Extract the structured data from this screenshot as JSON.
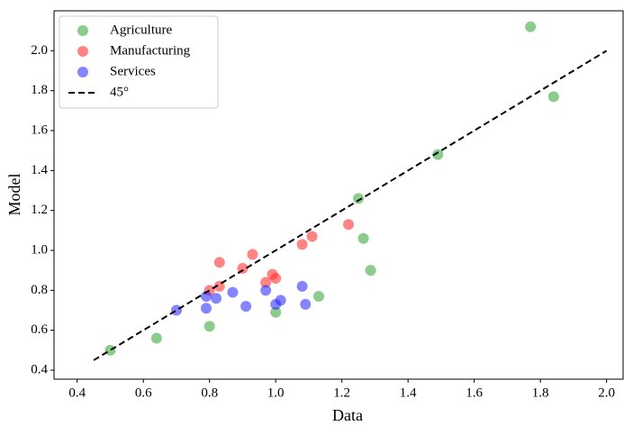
{
  "chart_data": {
    "type": "scatter",
    "xlabel": "Data",
    "ylabel": "Model",
    "xlim": [
      0.33,
      2.05
    ],
    "ylim": [
      0.355,
      2.2
    ],
    "xticks": [
      0.4,
      0.6,
      0.8,
      {
        "value": 1,
        "label": "1.0"
      },
      1.2,
      1.4,
      1.6,
      1.8,
      {
        "value": 2,
        "label": "2.0"
      }
    ],
    "yticks": [
      0.4,
      0.6,
      0.8,
      {
        "value": 1,
        "label": "1.0"
      },
      1.2,
      1.4,
      1.6,
      1.8,
      {
        "value": 2,
        "label": "2.0"
      }
    ],
    "legend": "upper left",
    "series": [
      {
        "name": "Agriculture",
        "color": "#2ca02c",
        "kind": "scatter",
        "x": [
          0.5,
          0.64,
          0.8,
          1.0,
          1.13,
          1.25,
          1.265,
          1.287,
          1.49,
          1.77,
          1.84
        ],
        "values": [
          0.5,
          0.56,
          0.62,
          0.69,
          0.77,
          1.26,
          1.06,
          0.9,
          1.48,
          2.12,
          1.77
        ]
      },
      {
        "name": "Manufacturing",
        "color": "#ff2020",
        "kind": "scatter",
        "x": [
          0.8,
          0.83,
          0.83,
          0.9,
          0.93,
          0.97,
          0.99,
          1.0,
          1.08,
          1.11,
          1.22
        ],
        "values": [
          0.8,
          0.94,
          0.82,
          0.91,
          0.98,
          0.84,
          0.88,
          0.86,
          1.03,
          1.07,
          1.13
        ]
      },
      {
        "name": "Services",
        "color": "#2020ff",
        "kind": "scatter",
        "x": [
          0.7,
          0.79,
          0.79,
          0.82,
          0.87,
          0.91,
          0.97,
          1.0,
          1.015,
          1.08,
          1.09
        ],
        "values": [
          0.7,
          0.71,
          0.77,
          0.76,
          0.79,
          0.72,
          0.8,
          0.73,
          0.75,
          0.82,
          0.73
        ]
      },
      {
        "name": "45°",
        "color": "#000000",
        "kind": "line",
        "dashed": true,
        "x": [
          0.45,
          2.0
        ],
        "values": [
          0.45,
          2.0
        ]
      }
    ]
  }
}
